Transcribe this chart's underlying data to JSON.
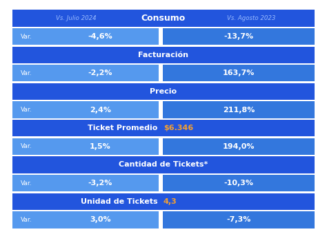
{
  "fig_width": 4.74,
  "fig_height": 3.4,
  "dpi": 100,
  "bg_color": "#ffffff",
  "header": {
    "left_text": "Vs. Julio 2024",
    "center_text": "Consumo",
    "right_text": "Vs. Agosto 2023",
    "bg_color": "#2255dd",
    "center_color": "#ffffff",
    "side_color": "#99bbff"
  },
  "rows": [
    {
      "type": "data",
      "left_label": "Var.",
      "left_value": "-4,6%",
      "right_value": "-13,7%",
      "left_bg": "#5599ee",
      "right_bg": "#3377dd",
      "text_color": "#ffffff"
    },
    {
      "type": "section",
      "text": "Facturación",
      "bg_color": "#2255dd",
      "text_color": "#ffffff"
    },
    {
      "type": "data",
      "left_label": "Var.",
      "left_value": "-2,2%",
      "right_value": "163,7%",
      "left_bg": "#5599ee",
      "right_bg": "#3377dd",
      "text_color": "#ffffff"
    },
    {
      "type": "section",
      "text": "Precio",
      "bg_color": "#2255dd",
      "text_color": "#ffffff"
    },
    {
      "type": "data",
      "left_label": "Var.",
      "left_value": "2,4%",
      "right_value": "211,8%",
      "left_bg": "#5599ee",
      "right_bg": "#3377dd",
      "text_color": "#ffffff"
    },
    {
      "type": "section_value",
      "text": "Ticket Promedio",
      "value": "$6.346",
      "bg_color": "#2255dd",
      "text_color": "#ffffff",
      "value_color": "#f5a030"
    },
    {
      "type": "data",
      "left_label": "Var.",
      "left_value": "1,5%",
      "right_value": "194,0%",
      "left_bg": "#5599ee",
      "right_bg": "#3377dd",
      "text_color": "#ffffff"
    },
    {
      "type": "section",
      "text": "Cantidad de Tickets*",
      "bg_color": "#2255dd",
      "text_color": "#ffffff"
    },
    {
      "type": "data",
      "left_label": "Var.",
      "left_value": "-3,2%",
      "right_value": "-10,3%",
      "left_bg": "#5599ee",
      "right_bg": "#3377dd",
      "text_color": "#ffffff"
    },
    {
      "type": "section_value",
      "text": "Unidad de Tickets",
      "value": "4,3",
      "bg_color": "#2255dd",
      "text_color": "#ffffff",
      "value_color": "#f5a030"
    },
    {
      "type": "data",
      "left_label": "Var.",
      "left_value": "3,0%",
      "right_value": "-7,3%",
      "left_bg": "#5599ee",
      "right_bg": "#3377dd",
      "text_color": "#ffffff"
    }
  ]
}
